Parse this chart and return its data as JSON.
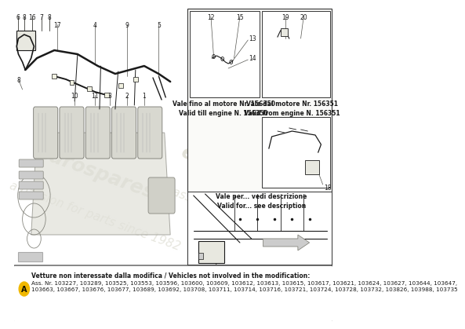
{
  "bg_color": "#ffffff",
  "watermark_color": "#d0cfc0",
  "watermark_lines": [
    "eurospares",
    "a passion for parts since 1982"
  ],
  "line_color": "#1a1a1a",
  "light_line": "#888880",
  "engine_fill": "#e8e8e0",
  "engine_stroke": "#777770",
  "note_box": {
    "text_bold": "Vetture non interessate dalla modifica / Vehicles not involved in the modification:",
    "text_normal": "Ass. Nr. 103227, 103289, 103525, 103553, 103596, 103600, 103609, 103612, 103613, 103615, 103617, 103621, 103624, 103627, 103644, 103647,\n103663, 103667, 103676, 103677, 103689, 103692, 103708, 103711, 103714, 103716, 103721, 103724, 103728, 103732, 103826, 103988, 103735",
    "circle_label": "A",
    "circle_color": "#f0b800",
    "bbox_color": "#ffffff",
    "border_color": "#444444"
  },
  "validity_left": "Vale fino al motore Nr. 156350\nValid till engine N. 156350",
  "validity_right": "Vale dal motore Nr. 156351\nValid from engine N. 156351",
  "validity_bot": "Vale per... vedi descrizione\nValid for... see description",
  "fs": 5.5,
  "fs_note": 5.5,
  "fs_watermark1": 18,
  "fs_watermark2": 11
}
